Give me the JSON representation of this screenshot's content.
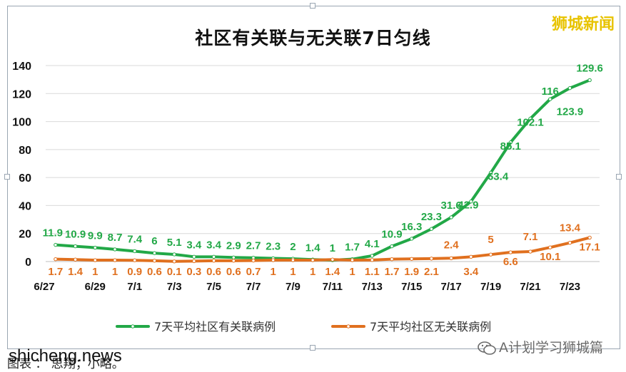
{
  "brand_top": "狮城新闻",
  "caption": "图表 ： 思翔；小略。",
  "watermark_left": "shicheng.news",
  "watermark_right": "A计划学习狮城篇",
  "icons": {
    "watermark_logo": "wechat-icon"
  },
  "colors": {
    "series_linked": "#22a847",
    "series_unlinked": "#e0701f",
    "grid": "#d9d9d9"
  },
  "chart_data": {
    "type": "line",
    "title": "社区有关联与无关联7日匀线",
    "categories": [
      "6/27",
      "6/28",
      "6/29",
      "6/30",
      "7/1",
      "7/2",
      "7/3",
      "7/4",
      "7/5",
      "7/6",
      "7/7",
      "7/8",
      "7/9",
      "7/10",
      "7/11",
      "7/12",
      "7/13",
      "7/14",
      "7/15",
      "7/16",
      "7/17",
      "7/18",
      "7/19",
      "7/20",
      "7/21",
      "7/22",
      "7/23",
      "7/24"
    ],
    "x_tick_labels": [
      "6/27",
      "6/29",
      "7/1",
      "7/3",
      "7/5",
      "7/7",
      "7/9",
      "7/11",
      "7/13",
      "7/15",
      "7/17",
      "7/19",
      "7/21",
      "7/23"
    ],
    "ylim": [
      0,
      140
    ],
    "y_ticks": [
      0,
      20,
      40,
      60,
      80,
      100,
      120,
      140
    ],
    "grid": true,
    "legend_position": "bottom",
    "series": [
      {
        "name": "7天平均社区有关联病例",
        "values": [
          11.9,
          10.9,
          9.9,
          8.7,
          7.4,
          6,
          5.1,
          3.4,
          3.4,
          2.9,
          2.7,
          2.3,
          2,
          1.4,
          1,
          1.7,
          4.1,
          10.9,
          16.3,
          23.3,
          31.6,
          42.9,
          63.4,
          85.1,
          102.1,
          116,
          123.9,
          129.6
        ],
        "labels": [
          "11.9",
          "10.9",
          "9.9",
          "8.7",
          "7.4",
          "6",
          "5.1",
          "3.4",
          "3.4",
          "2.9",
          "2.7",
          "2.3",
          "2",
          "1.4",
          "1",
          "1.7",
          "4.1",
          "10.9",
          "16.3",
          "23.3",
          "31.6",
          "42.9",
          "63.4",
          "85.1",
          "102.1",
          "116",
          "123.9",
          "129.6"
        ]
      },
      {
        "name": "7天平均社区无关联病例",
        "values": [
          1.7,
          1.4,
          1,
          1,
          0.9,
          0.6,
          0.1,
          0.3,
          0.6,
          0.6,
          0.7,
          1,
          1,
          1,
          1.4,
          1,
          1.1,
          1.7,
          1.9,
          2.1,
          2.4,
          3.4,
          5,
          6.6,
          7.1,
          10.1,
          13.4,
          17.1
        ],
        "labels": [
          "1.7",
          "1.4",
          "1",
          "1",
          "0.9",
          "0.6",
          "0.1",
          "0.3",
          "0.6",
          "0.6",
          "0.7",
          "1",
          "1",
          "1",
          "1.4",
          "1",
          "1.1",
          "1.7",
          "1.9",
          "2.1",
          "2.4",
          "3.4",
          "5",
          "6.6",
          "7.1",
          "10.1",
          "13.4",
          "17.1"
        ]
      }
    ]
  }
}
